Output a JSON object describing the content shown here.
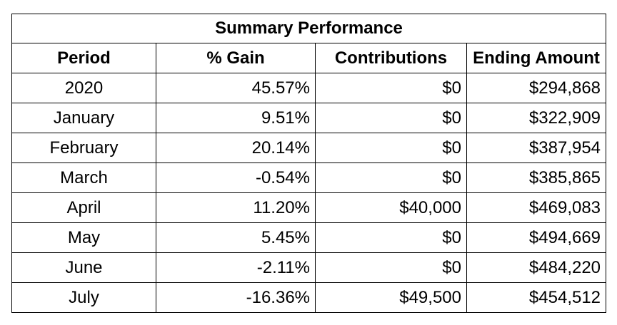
{
  "table": {
    "title": "Summary Performance",
    "columns": [
      "Period",
      "% Gain",
      "Contributions",
      "Ending Amount"
    ],
    "rows": [
      {
        "period": "2020",
        "gain": "45.57%",
        "contributions": "$0",
        "ending": "$294,868"
      },
      {
        "period": "January",
        "gain": "9.51%",
        "contributions": "$0",
        "ending": "$322,909"
      },
      {
        "period": "February",
        "gain": "20.14%",
        "contributions": "$0",
        "ending": "$387,954"
      },
      {
        "period": "March",
        "gain": "-0.54%",
        "contributions": "$0",
        "ending": "$385,865"
      },
      {
        "period": "April",
        "gain": "11.20%",
        "contributions": "$40,000",
        "ending": "$469,083"
      },
      {
        "period": "May",
        "gain": "5.45%",
        "contributions": "$0",
        "ending": "$494,669"
      },
      {
        "period": "June",
        "gain": "-2.11%",
        "contributions": "$0",
        "ending": "$484,220"
      },
      {
        "period": "July",
        "gain": "-16.36%",
        "contributions": "$49,500",
        "ending": "$454,512"
      }
    ]
  }
}
